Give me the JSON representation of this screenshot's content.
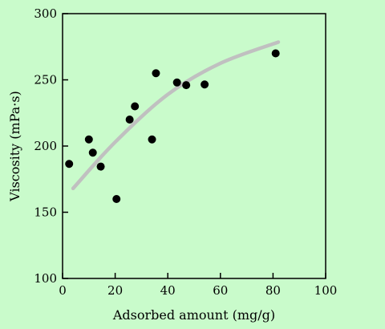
{
  "chart_data": {
    "type": "scatter",
    "title": "",
    "xlabel": "Adsorbed amount (mg/g)",
    "ylabel": "Viscosity (mPa·s)",
    "xlim": [
      0,
      100
    ],
    "ylim": [
      100,
      300
    ],
    "x_ticks": [
      0,
      20,
      40,
      60,
      80,
      100
    ],
    "y_ticks": [
      100,
      150,
      200,
      250,
      300
    ],
    "x_tick_labels": [
      "0",
      "20",
      "40",
      "60",
      "80",
      "100"
    ],
    "y_tick_labels": [
      "100",
      "150",
      "200",
      "250",
      "300"
    ],
    "grid": false,
    "series": [
      {
        "kind": "points",
        "color": "#000000",
        "x": [
          2.5,
          10,
          11.5,
          14.5,
          20.5,
          25.5,
          27.5,
          34,
          35.5,
          43.5,
          47,
          54,
          81
        ],
        "y": [
          186.5,
          205,
          195,
          184.5,
          160,
          220,
          230,
          205,
          255,
          248,
          246,
          246.5,
          270
        ]
      },
      {
        "kind": "trend",
        "color": "#c0c0c0",
        "x": [
          4,
          20,
          40,
          60,
          82
        ],
        "y": [
          168,
          203,
          239,
          262.5,
          278.5
        ]
      }
    ]
  }
}
